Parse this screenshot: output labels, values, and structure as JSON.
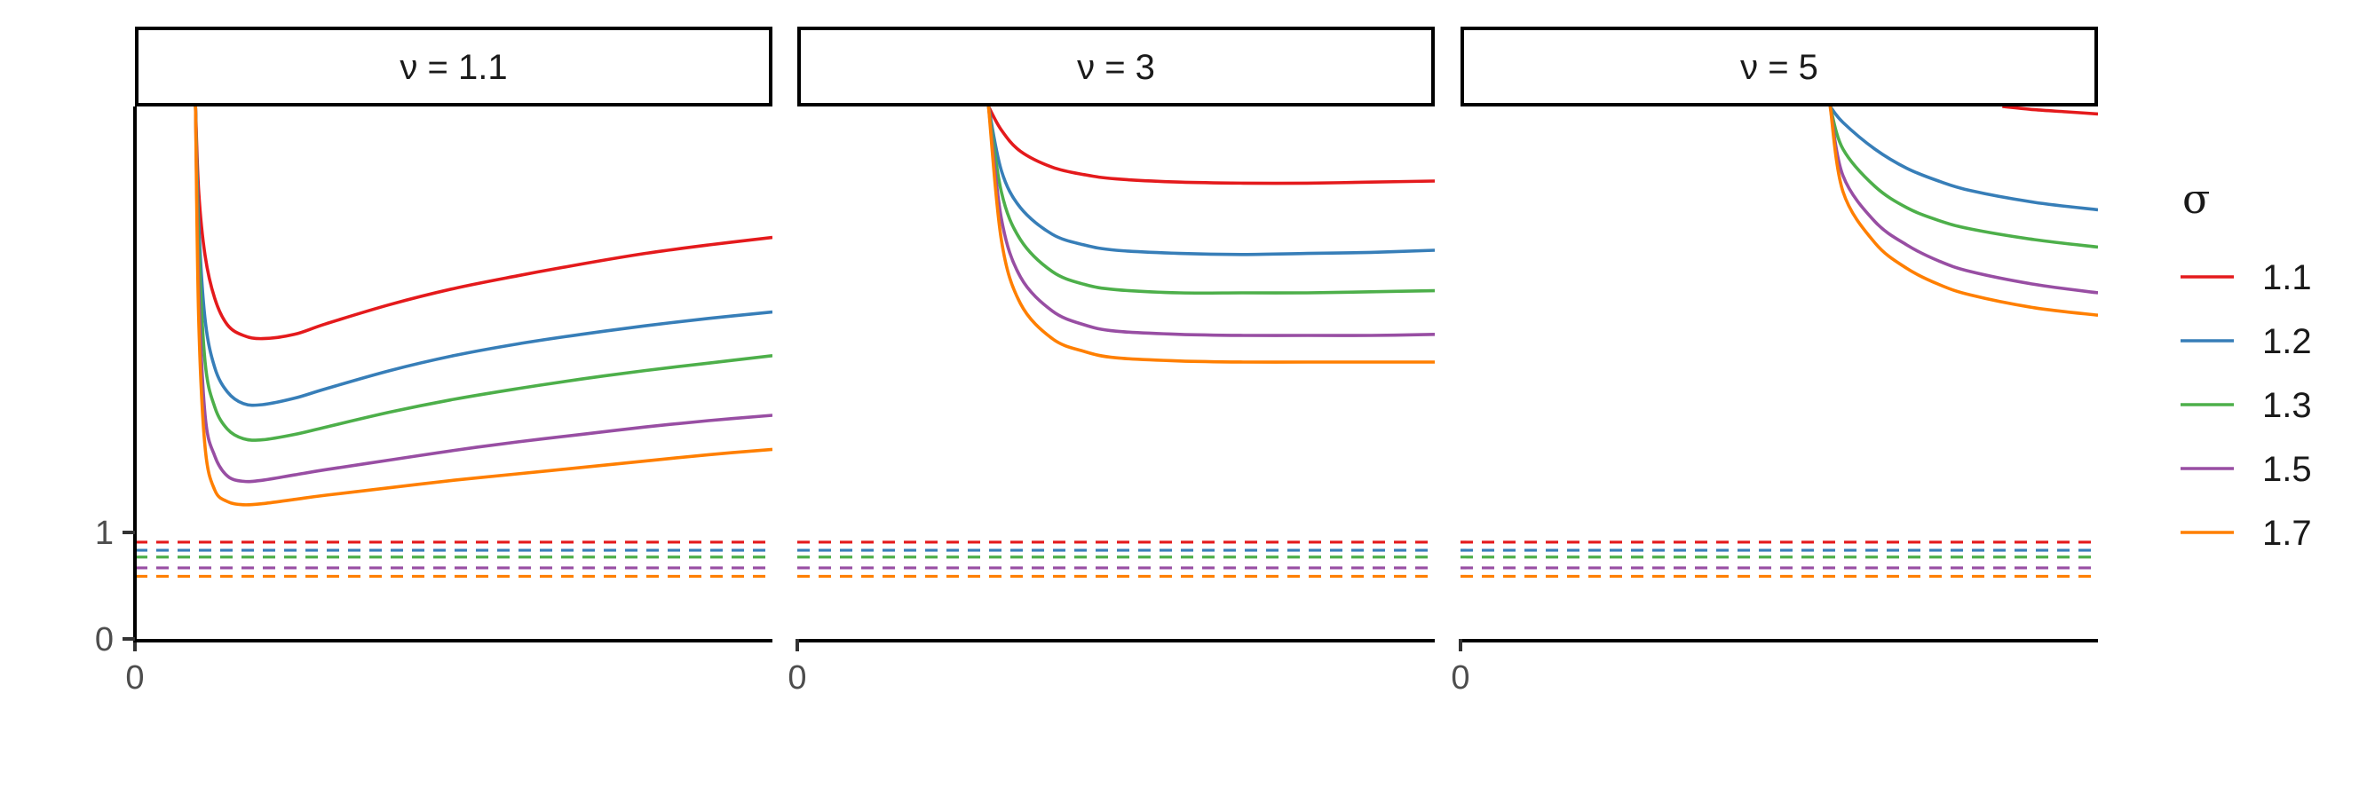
{
  "chart_data": {
    "type": "line",
    "facets": [
      {
        "label": "ν = 1.1",
        "x_tick_labels": [
          "0"
        ],
        "y_tick_labels": [
          "0",
          "1"
        ]
      },
      {
        "label": "ν = 3",
        "x_tick_labels": [
          "0"
        ]
      },
      {
        "label": "ν = 5",
        "x_tick_labels": [
          "0"
        ]
      }
    ],
    "y_ticks": [
      0,
      1
    ],
    "x_ticks": [
      0
    ],
    "ylim": [
      0,
      5
    ],
    "xlim": [
      0,
      10
    ],
    "legend": {
      "title": "σ",
      "placement": "right",
      "entries": [
        "1.1",
        "1.2",
        "1.3",
        "1.5",
        "1.7"
      ]
    },
    "series_colors": [
      "#e41a1c",
      "#377eb8",
      "#4daf4a",
      "#984ea3",
      "#ff7f00"
    ],
    "dashed_levels": [
      0.909,
      0.833,
      0.769,
      0.667,
      0.588
    ],
    "series": [
      {
        "name": "1.1",
        "color": "#e41a1c",
        "facets": [
          {
            "x": [
              0.95,
              1.0,
              1.1,
              1.25,
              1.45,
              1.7,
              2.0,
              2.5,
              3.0,
              4.0,
              5.0,
              6.0,
              7.0,
              8.0,
              9.0,
              10.0
            ],
            "y": [
              5.0,
              4.2,
              3.6,
              3.2,
              2.95,
              2.85,
              2.82,
              2.86,
              2.96,
              3.14,
              3.29,
              3.41,
              3.52,
              3.62,
              3.7,
              3.77
            ]
          },
          {
            "x": [
              3.0,
              3.2,
              3.5,
              4.0,
              4.5,
              5.0,
              6.0,
              7.0,
              8.0,
              9.0,
              10.0
            ],
            "y": [
              5.0,
              4.78,
              4.58,
              4.43,
              4.36,
              4.32,
              4.29,
              4.28,
              4.28,
              4.29,
              4.3
            ]
          },
          {
            "x": [
              8.5,
              9.0,
              9.5,
              10.0
            ],
            "y": [
              5.0,
              4.97,
              4.95,
              4.93
            ]
          }
        ]
      },
      {
        "name": "1.2",
        "color": "#377eb8",
        "facets": [
          {
            "x": [
              0.95,
              1.0,
              1.1,
              1.25,
              1.45,
              1.7,
              2.0,
              2.5,
              3.0,
              4.0,
              5.0,
              6.0,
              7.0,
              8.0,
              9.0,
              10.0
            ],
            "y": [
              5.0,
              3.9,
              3.0,
              2.55,
              2.32,
              2.21,
              2.2,
              2.26,
              2.35,
              2.52,
              2.66,
              2.77,
              2.86,
              2.94,
              3.01,
              3.07
            ]
          },
          {
            "x": [
              3.0,
              3.2,
              3.5,
              4.0,
              4.5,
              5.0,
              6.0,
              7.0,
              8.0,
              9.0,
              10.0
            ],
            "y": [
              5.0,
              4.4,
              4.05,
              3.8,
              3.7,
              3.65,
              3.62,
              3.61,
              3.62,
              3.63,
              3.65
            ]
          },
          {
            "x": [
              5.8,
              6.0,
              6.5,
              7.0,
              7.5,
              8.0,
              9.0,
              10.0
            ],
            "y": [
              5.0,
              4.85,
              4.6,
              4.42,
              4.3,
              4.21,
              4.1,
              4.03
            ]
          }
        ]
      },
      {
        "name": "1.3",
        "color": "#4daf4a",
        "facets": [
          {
            "x": [
              0.95,
              1.0,
              1.1,
              1.25,
              1.45,
              1.7,
              2.0,
              2.5,
              3.0,
              4.0,
              5.0,
              6.0,
              7.0,
              8.0,
              9.0,
              10.0
            ],
            "y": [
              5.0,
              3.7,
              2.6,
              2.18,
              1.97,
              1.88,
              1.87,
              1.92,
              1.99,
              2.13,
              2.25,
              2.35,
              2.44,
              2.52,
              2.59,
              2.66
            ]
          },
          {
            "x": [
              3.0,
              3.2,
              3.5,
              4.0,
              4.5,
              5.0,
              6.0,
              7.0,
              8.0,
              9.0,
              10.0
            ],
            "y": [
              5.0,
              4.2,
              3.75,
              3.45,
              3.33,
              3.28,
              3.25,
              3.25,
              3.25,
              3.26,
              3.27
            ]
          },
          {
            "x": [
              5.8,
              6.0,
              6.5,
              7.0,
              7.5,
              8.0,
              9.0,
              10.0
            ],
            "y": [
              5.0,
              4.6,
              4.25,
              4.05,
              3.93,
              3.85,
              3.75,
              3.68
            ]
          }
        ]
      },
      {
        "name": "1.5",
        "color": "#984ea3",
        "facets": [
          {
            "x": [
              0.95,
              1.0,
              1.1,
              1.25,
              1.45,
              1.7,
              2.0,
              2.5,
              3.0,
              4.0,
              5.0,
              6.0,
              7.0,
              8.0,
              9.0,
              10.0
            ],
            "y": [
              5.0,
              3.3,
              2.1,
              1.72,
              1.53,
              1.48,
              1.49,
              1.54,
              1.59,
              1.68,
              1.77,
              1.85,
              1.92,
              1.99,
              2.05,
              2.1
            ]
          },
          {
            "x": [
              3.0,
              3.2,
              3.5,
              4.0,
              4.5,
              5.0,
              6.0,
              7.0,
              8.0,
              9.0,
              10.0
            ],
            "y": [
              5.0,
              3.95,
              3.4,
              3.08,
              2.95,
              2.89,
              2.86,
              2.85,
              2.85,
              2.85,
              2.86
            ]
          },
          {
            "x": [
              5.8,
              6.0,
              6.5,
              7.0,
              7.5,
              8.0,
              9.0,
              10.0
            ],
            "y": [
              5.0,
              4.35,
              3.92,
              3.7,
              3.55,
              3.45,
              3.33,
              3.25
            ]
          }
        ]
      },
      {
        "name": "1.7",
        "color": "#ff7f00",
        "facets": [
          {
            "x": [
              0.95,
              1.0,
              1.1,
              1.25,
              1.45,
              1.7,
              2.0,
              2.5,
              3.0,
              4.0,
              5.0,
              6.0,
              7.0,
              8.0,
              9.0,
              10.0
            ],
            "y": [
              5.0,
              3.0,
              1.8,
              1.4,
              1.29,
              1.26,
              1.27,
              1.31,
              1.35,
              1.42,
              1.49,
              1.55,
              1.61,
              1.67,
              1.73,
              1.78
            ]
          },
          {
            "x": [
              3.0,
              3.2,
              3.5,
              4.0,
              4.5,
              5.0,
              6.0,
              7.0,
              8.0,
              9.0,
              10.0
            ],
            "y": [
              5.0,
              3.75,
              3.15,
              2.82,
              2.7,
              2.64,
              2.61,
              2.6,
              2.6,
              2.6,
              2.6
            ]
          },
          {
            "x": [
              5.8,
              6.0,
              6.5,
              7.0,
              7.5,
              8.0,
              9.0,
              10.0
            ],
            "y": [
              5.0,
              4.2,
              3.72,
              3.48,
              3.33,
              3.23,
              3.11,
              3.04
            ]
          }
        ]
      }
    ]
  }
}
